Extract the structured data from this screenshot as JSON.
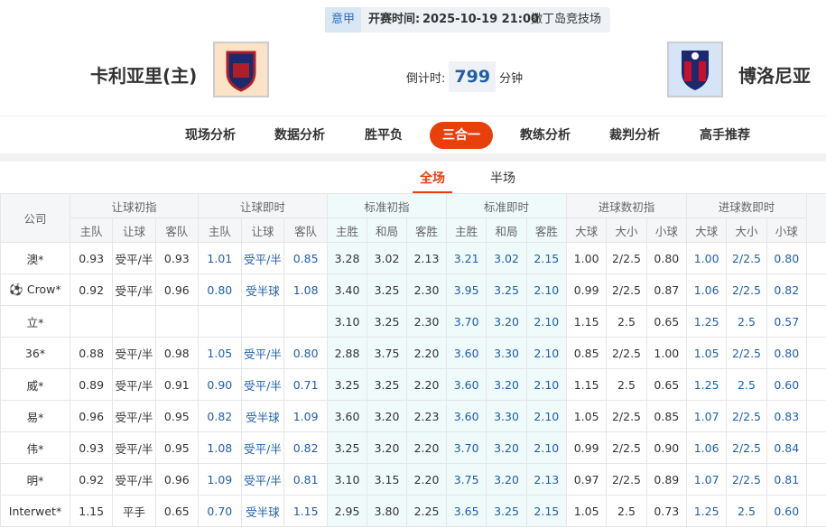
{
  "header": {
    "league": "意甲",
    "time_label": "开赛时间:",
    "time": "2025-10-19 21:00",
    "venue": "撒丁岛竞技场",
    "home": "卡利亚里(主)",
    "away": "博洛尼亚",
    "countdown_label": "倒计时:",
    "countdown": "799",
    "countdown_unit": "分钟"
  },
  "tabs": {
    "items": [
      "现场分析",
      "数据分析",
      "胜平负",
      "三合一",
      "教练分析",
      "裁判分析",
      "高手推荐"
    ],
    "active": 3
  },
  "subtabs": {
    "items": [
      "全场",
      "半场"
    ],
    "active": 0
  },
  "table": {
    "company_header": "公司",
    "groups": [
      "让球初指",
      "让球即时",
      "标准初指",
      "标准即时",
      "进球数初指",
      "进球数即时"
    ],
    "subheaders": [
      "主队",
      "让球",
      "客队",
      "主队",
      "让球",
      "客队",
      "主胜",
      "和局",
      "客胜",
      "主胜",
      "和局",
      "客胜",
      "大球",
      "大小",
      "小球",
      "大球",
      "大小",
      "小球"
    ],
    "rows": [
      {
        "company": "澳*",
        "cells": [
          "0.93",
          "受平/半",
          "0.93",
          "1.01",
          "受平/半",
          "0.85",
          "3.28",
          "3.02",
          "2.13",
          "3.21",
          "3.02",
          "2.15",
          "1.00",
          "2/2.5",
          "0.80",
          "1.00",
          "2/2.5",
          "0.80"
        ]
      },
      {
        "company": "Crow*",
        "cells": [
          "0.92",
          "受平/半",
          "0.96",
          "0.80",
          "受半球",
          "1.08",
          "3.40",
          "3.25",
          "2.30",
          "3.95",
          "3.25",
          "2.10",
          "0.99",
          "2/2.5",
          "0.87",
          "1.06",
          "2/2.5",
          "0.82"
        ]
      },
      {
        "company": "立*",
        "cells": [
          null,
          null,
          null,
          null,
          null,
          null,
          "3.10",
          "3.25",
          "2.30",
          "3.70",
          "3.20",
          "2.10",
          "1.15",
          "2.5",
          "0.65",
          "1.25",
          "2.5",
          "0.57"
        ]
      },
      {
        "company": "36*",
        "cells": [
          "0.88",
          "受平/半",
          "0.98",
          "1.05",
          "受平/半",
          "0.80",
          "2.88",
          "3.75",
          "2.20",
          "3.60",
          "3.30",
          "2.10",
          "0.85",
          "2/2.5",
          "1.00",
          "1.05",
          "2/2.5",
          "0.80"
        ]
      },
      {
        "company": "威*",
        "cells": [
          "0.89",
          "受平/半",
          "0.91",
          "0.90",
          "受平/半",
          "0.71",
          "3.25",
          "3.25",
          "2.20",
          "3.60",
          "3.20",
          "2.10",
          "1.15",
          "2.5",
          "0.65",
          "1.25",
          "2.5",
          "0.60"
        ]
      },
      {
        "company": "易*",
        "cells": [
          "0.96",
          "受平/半",
          "0.95",
          "0.82",
          "受半球",
          "1.09",
          "3.60",
          "3.20",
          "2.23",
          "3.60",
          "3.30",
          "2.10",
          "1.05",
          "2/2.5",
          "0.85",
          "1.07",
          "2/2.5",
          "0.83"
        ]
      },
      {
        "company": "伟*",
        "cells": [
          "0.93",
          "受平/半",
          "0.95",
          "1.08",
          "受平/半",
          "0.82",
          "3.25",
          "3.20",
          "2.20",
          "3.70",
          "3.20",
          "2.10",
          "0.99",
          "2/2.5",
          "0.90",
          "1.06",
          "2/2.5",
          "0.84"
        ]
      },
      {
        "company": "明*",
        "cells": [
          "0.92",
          "受平/半",
          "0.96",
          "1.09",
          "受平/半",
          "0.81",
          "3.10",
          "3.15",
          "2.20",
          "3.75",
          "3.20",
          "2.13",
          "0.97",
          "2/2.5",
          "0.89",
          "1.07",
          "2/2.5",
          "0.81"
        ]
      },
      {
        "company": "Interwet*",
        "cells": [
          "1.15",
          "平手",
          "0.65",
          "0.70",
          "受半球",
          "1.15",
          "2.95",
          "3.80",
          "2.25",
          "3.65",
          "3.25",
          "2.15",
          "1.05",
          "2.5",
          "0.73",
          "1.25",
          "2.5",
          "0.60"
        ]
      }
    ]
  }
}
